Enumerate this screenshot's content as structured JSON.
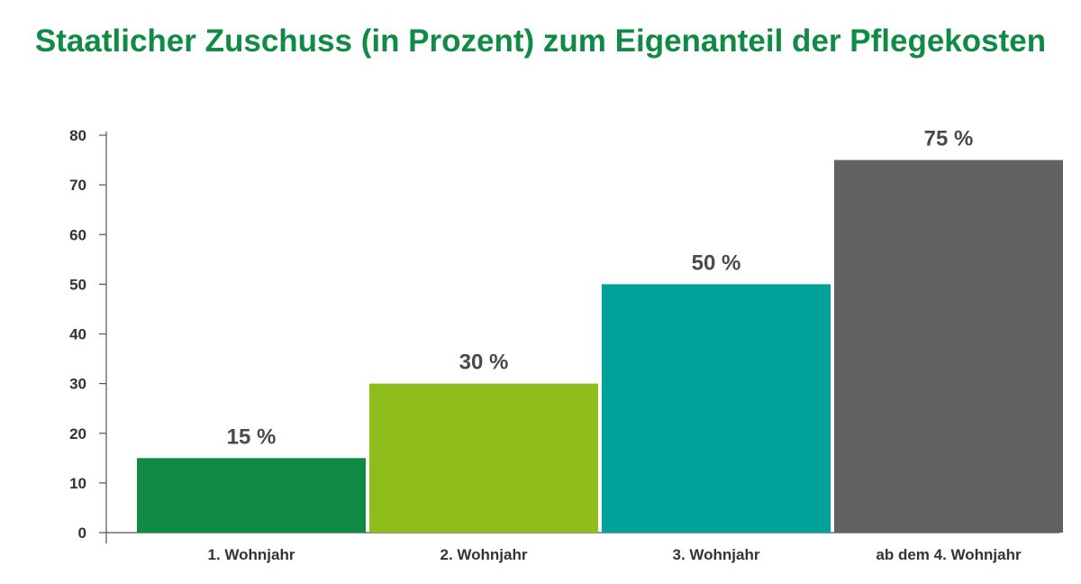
{
  "chart_data": {
    "type": "bar",
    "title": "Staatlicher Zuschuss (in Prozent) zum Eigenanteil der Pflegekosten",
    "categories": [
      "1. Wohnjahr",
      "2. Wohnjahr",
      "3. Wohnjahr",
      "ab dem 4. Wohnjahr"
    ],
    "values": [
      15,
      30,
      50,
      75
    ],
    "data_labels": [
      "15 %",
      "30 %",
      "50 %",
      "75 %"
    ],
    "bar_colors": [
      "#118a45",
      "#8fbe1c",
      "#00a19a",
      "#616161"
    ],
    "xlabel": "",
    "ylabel": "",
    "ylim": [
      0,
      80
    ],
    "yticks": [
      0,
      10,
      20,
      30,
      40,
      50,
      60,
      70,
      80
    ],
    "grid": false,
    "legend": "none"
  },
  "colors": {
    "title": "#118a45",
    "axis": "#555555",
    "text": "#333333"
  }
}
